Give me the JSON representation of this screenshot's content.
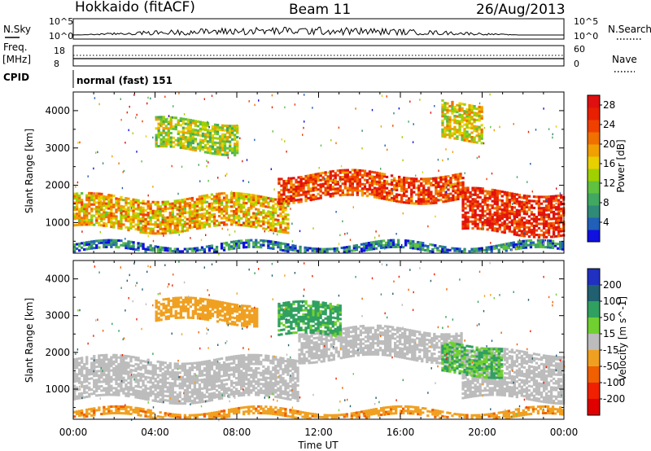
{
  "header": {
    "station": "Hokkaido (fitACF)",
    "beam": "Beam 11",
    "date": "26/Aug/2013"
  },
  "strip": {
    "nsky_label": "N.Sky",
    "nsky_ticks": [
      "10^5",
      "10^0"
    ],
    "nsearch_label": "N.Search",
    "freq_label": "Freq.",
    "freq_unit": "[MHz]",
    "freq_ticks": [
      "18",
      "8"
    ],
    "nave_label": "Nave",
    "nave_ticks": [
      "60",
      "0"
    ],
    "cpid_label": "CPID",
    "cpid_text": "normal (fast) 151"
  },
  "x_axis": {
    "label": "Time UT",
    "ticks": [
      "00:00",
      "04:00",
      "08:00",
      "12:00",
      "16:00",
      "20:00",
      "00:00"
    ]
  },
  "chart_data": [
    {
      "type": "heatmap",
      "panel": "power",
      "xlabel": "Time UT",
      "ylabel": "Slant Range [km]",
      "xlim": [
        "00:00",
        "24:00"
      ],
      "ylim": [
        180,
        4500
      ],
      "y_ticks": [
        1000,
        2000,
        3000,
        4000
      ],
      "colorbar": {
        "label": "Power [dB]",
        "ticks": [
          4,
          8,
          12,
          16,
          20,
          24,
          28
        ],
        "range": [
          0,
          30
        ],
        "colors": [
          "#1010e0",
          "#2060b8",
          "#308a78",
          "#40a860",
          "#60c040",
          "#a0d000",
          "#e8d000",
          "#f0a000",
          "#f07000",
          "#f04000",
          "#e82000",
          "#e01010"
        ]
      },
      "echo_bands": [
        {
          "start": "00:00",
          "end": "24:00",
          "range_km": [
            200,
            420
          ],
          "power_db": 6
        },
        {
          "start": "00:00",
          "end": "10:30",
          "range_km": [
            800,
            1700
          ],
          "power_db": 18
        },
        {
          "start": "10:00",
          "end": "19:00",
          "range_km": [
            1600,
            2300
          ],
          "power_db": 24
        },
        {
          "start": "19:00",
          "end": "24:00",
          "range_km": [
            700,
            1800
          ],
          "power_db": 26
        },
        {
          "start": "04:00",
          "end": "08:00",
          "range_km": [
            2900,
            3700
          ],
          "power_db": 14
        },
        {
          "start": "18:00",
          "end": "20:00",
          "range_km": [
            3200,
            4200
          ],
          "power_db": 16
        }
      ]
    },
    {
      "type": "heatmap",
      "panel": "velocity",
      "xlabel": "Time UT",
      "ylabel": "Slant Range [km]",
      "xlim": [
        "00:00",
        "24:00"
      ],
      "ylim": [
        180,
        4500
      ],
      "y_ticks": [
        1000,
        2000,
        3000,
        4000
      ],
      "colorbar": {
        "label": "Velocity [m s^-1]",
        "ticks": [
          200,
          100,
          50,
          15,
          -15,
          -50,
          -100,
          -200
        ],
        "colors": [
          "#2030c0",
          "#206070",
          "#30a060",
          "#70d030",
          "#bcbcbc",
          "#f0a020",
          "#f06000",
          "#f02000",
          "#e00000"
        ]
      },
      "echo_bands": [
        {
          "start": "00:00",
          "end": "11:00",
          "range_km": [
            700,
            1800
          ],
          "velocity": 0
        },
        {
          "start": "11:00",
          "end": "19:00",
          "range_km": [
            1800,
            2600
          ],
          "velocity": 0
        },
        {
          "start": "19:00",
          "end": "24:00",
          "range_km": [
            700,
            2000
          ],
          "velocity": 0
        },
        {
          "start": "04:00",
          "end": "09:00",
          "range_km": [
            2800,
            3400
          ],
          "velocity": -30
        },
        {
          "start": "10:00",
          "end": "13:00",
          "range_km": [
            2400,
            3300
          ],
          "velocity": 40
        },
        {
          "start": "18:00",
          "end": "21:00",
          "range_km": [
            1400,
            2200
          ],
          "velocity": 30
        },
        {
          "start": "00:00",
          "end": "24:00",
          "range_km": [
            200,
            420
          ],
          "velocity": -40
        }
      ]
    }
  ]
}
